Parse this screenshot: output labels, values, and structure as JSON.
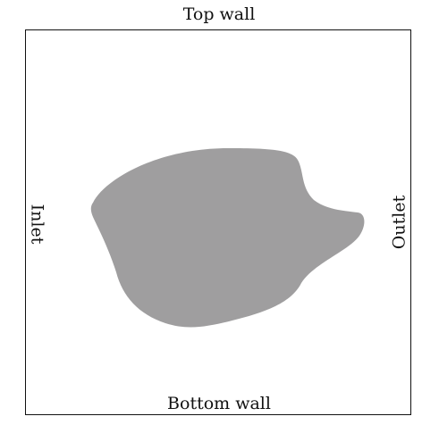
{
  "diagram": {
    "labels": {
      "top": "Top wall",
      "bottom": "Bottom wall",
      "left": "Inlet",
      "right": "Outlet"
    },
    "colors": {
      "border": "#111111",
      "obstacle": "#9f9e9f",
      "background": "#ffffff",
      "text": "#111111"
    }
  }
}
